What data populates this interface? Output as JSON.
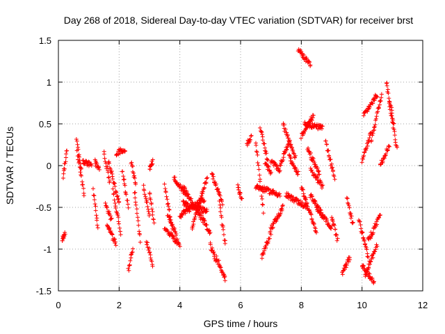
{
  "chart_data": {
    "type": "scatter",
    "title": "Day 268 of 2018, Sidereal Day-to-day VTEC variation (SDTVAR) for receiver brst",
    "xlabel": "GPS time / hours",
    "ylabel": "SDTVAR / TECUs",
    "xlim": [
      0,
      12
    ],
    "ylim": [
      -1.5,
      1.5
    ],
    "xticks": [
      0,
      2,
      4,
      6,
      8,
      10,
      12
    ],
    "xtick_labels": [
      "0",
      "2",
      "4",
      "6",
      "8",
      "10",
      "12"
    ],
    "yticks": [
      -1.5,
      -1,
      -0.5,
      0,
      0.5,
      1,
      1.5
    ],
    "ytick_labels": [
      "-1.5",
      "-1",
      "-0.5",
      "0",
      "0.5",
      "1",
      "1.5"
    ],
    "grid": true,
    "marker": "+",
    "series": [
      {
        "name": "SDTVAR",
        "color": "#ff0000",
        "tracks": [
          {
            "x": [
              0.12,
              0.22
            ],
            "y": [
              -0.9,
              -0.8
            ]
          },
          {
            "x": [
              0.15,
              0.28
            ],
            "y": [
              -0.15,
              0.2
            ]
          },
          {
            "x": [
              0.6,
              0.75
            ],
            "y": [
              0.3,
              -0.05
            ]
          },
          {
            "x": [
              0.62,
              0.85
            ],
            "y": [
              0.15,
              -0.35
            ]
          },
          {
            "x": [
              0.8,
              1.1
            ],
            "y": [
              0.05,
              0.0
            ]
          },
          {
            "x": [
              1.15,
              1.3
            ],
            "y": [
              -0.3,
              -0.75
            ]
          },
          {
            "x": [
              1.2,
              1.35
            ],
            "y": [
              0.05,
              -0.05
            ]
          },
          {
            "x": [
              1.5,
              1.7
            ],
            "y": [
              0.15,
              -0.2
            ]
          },
          {
            "x": [
              1.55,
              1.75
            ],
            "y": [
              -0.45,
              -0.65
            ]
          },
          {
            "x": [
              1.6,
              1.9
            ],
            "y": [
              -0.7,
              -0.95
            ]
          },
          {
            "x": [
              1.65,
              2.0
            ],
            "y": [
              0.05,
              -0.45
            ]
          },
          {
            "x": [
              1.8,
              2.05
            ],
            "y": [
              -0.3,
              -0.8
            ]
          },
          {
            "x": [
              1.9,
              2.2
            ],
            "y": [
              0.15,
              0.2
            ]
          },
          {
            "x": [
              2.1,
              2.3
            ],
            "y": [
              -0.05,
              -0.5
            ]
          },
          {
            "x": [
              2.3,
              2.45
            ],
            "y": [
              -1.25,
              -1.0
            ]
          },
          {
            "x": [
              2.4,
              2.55
            ],
            "y": [
              0.05,
              -0.25
            ]
          },
          {
            "x": [
              2.5,
              2.7
            ],
            "y": [
              -0.3,
              -0.9
            ]
          },
          {
            "x": [
              2.8,
              3.0
            ],
            "y": [
              -0.25,
              -0.6
            ]
          },
          {
            "x": [
              2.9,
              3.1
            ],
            "y": [
              -0.9,
              -1.2
            ]
          },
          {
            "x": [
              3.0,
              3.15
            ],
            "y": [
              -0.3,
              -0.7
            ]
          },
          {
            "x": [
              3.0,
              3.1
            ],
            "y": [
              -0.05,
              0.05
            ]
          },
          {
            "x": [
              3.5,
              3.7
            ],
            "y": [
              -0.25,
              -0.65
            ]
          },
          {
            "x": [
              3.6,
              3.9
            ],
            "y": [
              -0.6,
              -0.85
            ]
          },
          {
            "x": [
              3.5,
              4.0
            ],
            "y": [
              -0.75,
              -0.95
            ]
          },
          {
            "x": [
              3.8,
              4.2
            ],
            "y": [
              -0.15,
              -0.35
            ]
          },
          {
            "x": [
              4.0,
              4.8
            ],
            "y": [
              -0.6,
              -0.4
            ]
          },
          {
            "x": [
              4.1,
              4.9
            ],
            "y": [
              -0.45,
              -0.55
            ]
          },
          {
            "x": [
              4.1,
              5.0
            ],
            "y": [
              -0.25,
              -0.8
            ]
          },
          {
            "x": [
              4.4,
              4.9
            ],
            "y": [
              -0.75,
              -0.15
            ]
          },
          {
            "x": [
              5.0,
              5.2
            ],
            "y": [
              -0.95,
              -1.15
            ]
          },
          {
            "x": [
              5.2,
              5.5
            ],
            "y": [
              -1.1,
              -1.35
            ]
          },
          {
            "x": [
              5.05,
              5.4
            ],
            "y": [
              -0.1,
              -0.45
            ]
          },
          {
            "x": [
              5.3,
              5.5
            ],
            "y": [
              -0.45,
              -0.95
            ]
          },
          {
            "x": [
              5.9,
              6.05
            ],
            "y": [
              -0.25,
              -0.4
            ]
          },
          {
            "x": [
              6.2,
              6.35
            ],
            "y": [
              0.25,
              0.35
            ]
          },
          {
            "x": [
              6.5,
              6.75
            ],
            "y": [
              0.3,
              -0.55
            ]
          },
          {
            "x": [
              6.5,
              7.3
            ],
            "y": [
              -0.25,
              -0.35
            ]
          },
          {
            "x": [
              6.65,
              6.9
            ],
            "y": [
              0.45,
              0.05
            ]
          },
          {
            "x": [
              6.7,
              7.0
            ],
            "y": [
              -1.1,
              -0.8
            ]
          },
          {
            "x": [
              7.0,
              7.4
            ],
            "y": [
              -0.75,
              -0.5
            ]
          },
          {
            "x": [
              6.8,
              7.0
            ],
            "y": [
              0.05,
              -0.1
            ]
          },
          {
            "x": [
              7.0,
              7.3
            ],
            "y": [
              0.05,
              -0.05
            ]
          },
          {
            "x": [
              7.3,
              7.6
            ],
            "y": [
              0.0,
              0.3
            ]
          },
          {
            "x": [
              7.6,
              7.9
            ],
            "y": [
              0.1,
              -0.1
            ]
          },
          {
            "x": [
              7.4,
              7.8
            ],
            "y": [
              0.5,
              0.1
            ]
          },
          {
            "x": [
              7.5,
              8.2
            ],
            "y": [
              -0.35,
              -0.5
            ]
          },
          {
            "x": [
              7.9,
              8.3
            ],
            "y": [
              1.4,
              1.2
            ]
          },
          {
            "x": [
              8.0,
              8.4
            ],
            "y": [
              0.35,
              0.6
            ]
          },
          {
            "x": [
              8.1,
              8.7
            ],
            "y": [
              0.5,
              0.45
            ]
          },
          {
            "x": [
              8.2,
              8.6
            ],
            "y": [
              0.2,
              -0.1
            ]
          },
          {
            "x": [
              8.3,
              8.7
            ],
            "y": [
              -0.05,
              -0.25
            ]
          },
          {
            "x": [
              8.0,
              8.5
            ],
            "y": [
              -0.25,
              -0.8
            ]
          },
          {
            "x": [
              8.3,
              8.7
            ],
            "y": [
              -0.35,
              -0.6
            ]
          },
          {
            "x": [
              8.5,
              9.0
            ],
            "y": [
              -0.5,
              -0.75
            ]
          },
          {
            "x": [
              8.8,
              9.1
            ],
            "y": [
              0.3,
              -0.15
            ]
          },
          {
            "x": [
              9.0,
              9.2
            ],
            "y": [
              -0.6,
              -0.9
            ]
          },
          {
            "x": [
              9.35,
              9.6
            ],
            "y": [
              -1.3,
              -1.1
            ]
          },
          {
            "x": [
              9.5,
              9.7
            ],
            "y": [
              -0.4,
              -0.7
            ]
          },
          {
            "x": [
              9.9,
              10.2
            ],
            "y": [
              -0.65,
              -1.1
            ]
          },
          {
            "x": [
              10.0,
              10.4
            ],
            "y": [
              -1.2,
              -1.4
            ]
          },
          {
            "x": [
              10.1,
              10.5
            ],
            "y": [
              -1.3,
              -0.95
            ]
          },
          {
            "x": [
              10.2,
              10.6
            ],
            "y": [
              -0.9,
              -0.6
            ]
          },
          {
            "x": [
              10.0,
              10.3
            ],
            "y": [
              0.05,
              0.4
            ]
          },
          {
            "x": [
              10.05,
              10.5
            ],
            "y": [
              0.6,
              0.85
            ]
          },
          {
            "x": [
              10.3,
              10.65
            ],
            "y": [
              0.3,
              0.85
            ]
          },
          {
            "x": [
              10.6,
              10.9
            ],
            "y": [
              0.0,
              0.25
            ]
          },
          {
            "x": [
              10.8,
              11.05
            ],
            "y": [
              1.0,
              0.5
            ]
          },
          {
            "x": [
              10.9,
              11.15
            ],
            "y": [
              0.75,
              0.2
            ]
          }
        ]
      }
    ]
  }
}
